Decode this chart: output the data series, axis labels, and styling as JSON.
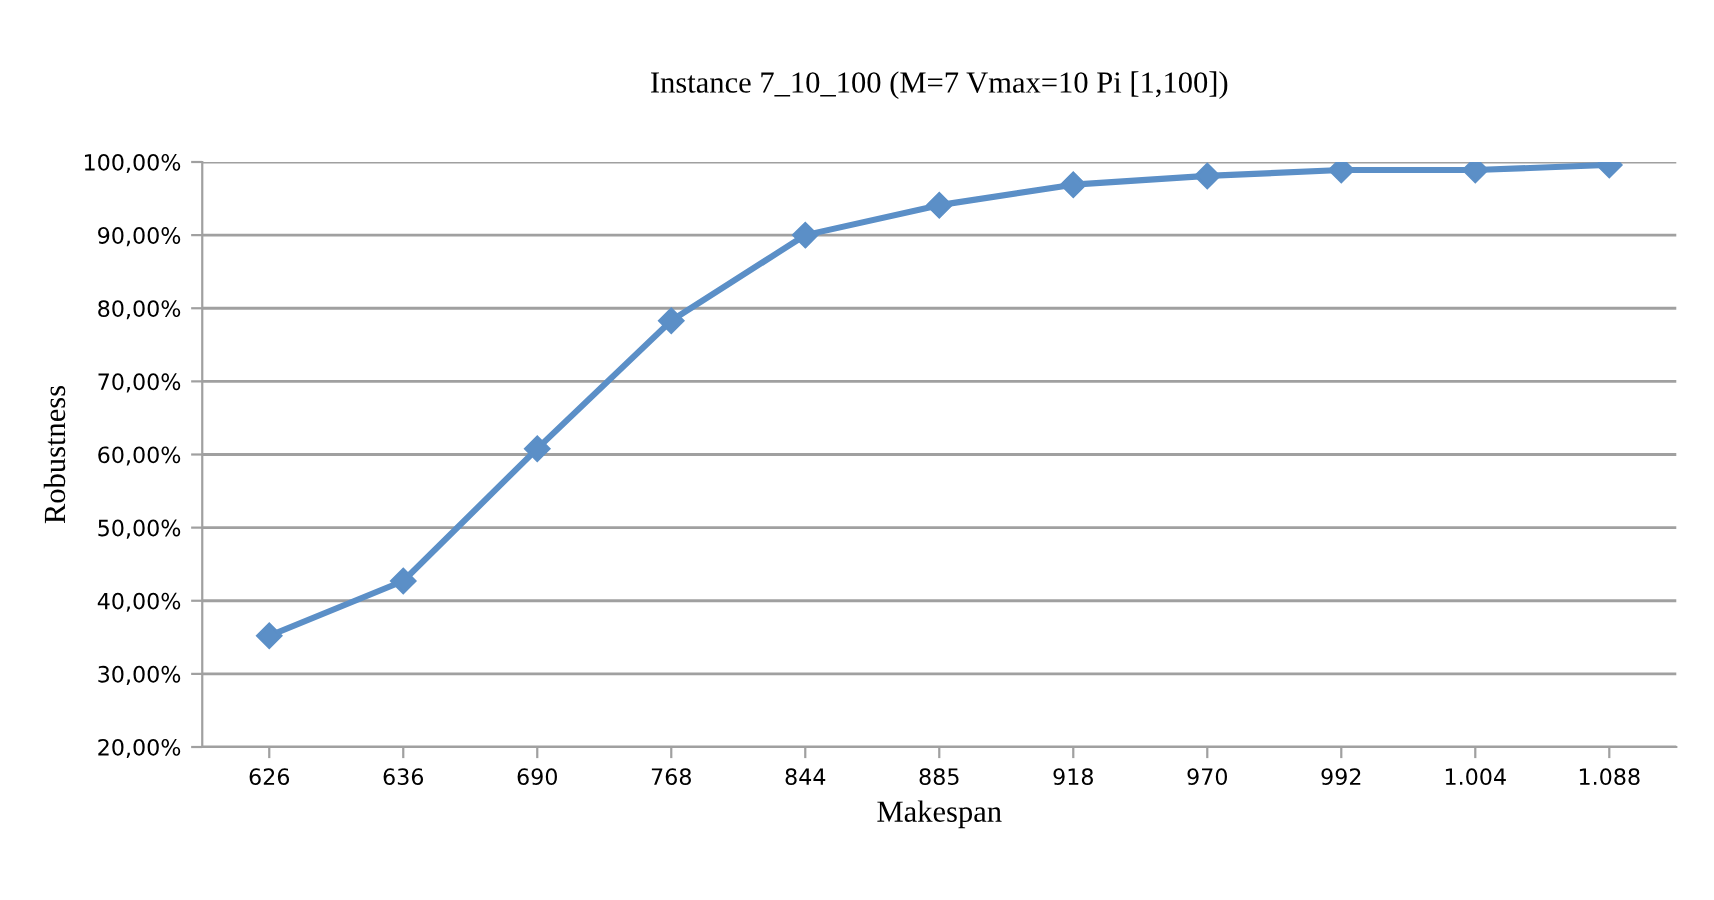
{
  "chart_data": {
    "type": "line",
    "title": "Instance 7_10_100 (M=7 Vmax=10 Pi [1,100])",
    "xlabel": "Makespan",
    "ylabel": "Robustness",
    "categories": [
      "626",
      "636",
      "690",
      "768",
      "844",
      "885",
      "918",
      "970",
      "992",
      "1.004",
      "1.088"
    ],
    "series": [
      {
        "color": "#5b8fc7",
        "values": [
          35.2,
          42.7,
          60.8,
          78.3,
          90.0,
          94.1,
          96.9,
          98.1,
          98.9,
          98.9,
          99.6
        ]
      }
    ],
    "ylim": [
      20,
      100
    ],
    "yticks": [
      {
        "value": 20,
        "label": "20,00%"
      },
      {
        "value": 30,
        "label": "30,00%"
      },
      {
        "value": 40,
        "label": "40,00%"
      },
      {
        "value": 50,
        "label": "50,00%"
      },
      {
        "value": 60,
        "label": "60,00%"
      },
      {
        "value": 70,
        "label": "70,00%"
      },
      {
        "value": 80,
        "label": "80,00%"
      },
      {
        "value": 90,
        "label": "90,00%"
      },
      {
        "value": 100,
        "label": "100,00%"
      }
    ],
    "grid": "y",
    "legend": false,
    "marker": "diamond",
    "line_style": "solid"
  }
}
